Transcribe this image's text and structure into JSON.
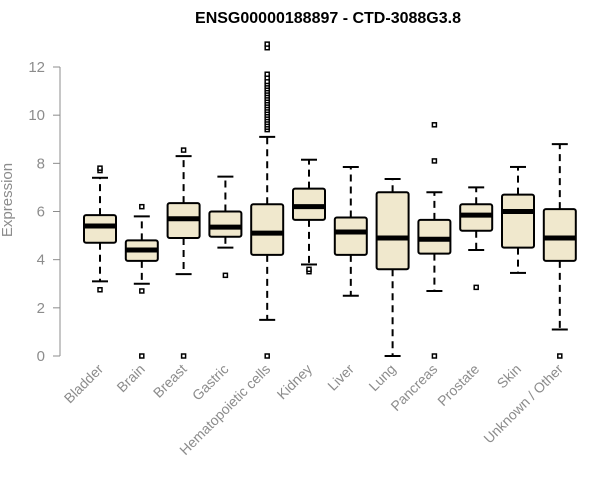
{
  "chart_data": {
    "type": "boxplot",
    "title": "ENSG00000188897 - CTD-3088G3.8",
    "ylabel": "Expression",
    "xlabel": "",
    "ylim": [
      0,
      12
    ],
    "yticks": [
      0,
      2,
      4,
      6,
      8,
      10,
      12
    ],
    "grid": false,
    "colors": {
      "box_fill": "#f0e8cd",
      "stroke": "#000000",
      "axis": "#8c8c8c",
      "label": "#8c8c8c"
    },
    "categories": [
      "Bladder",
      "Brain",
      "Breast",
      "Gastric",
      "Hematopoietic cells",
      "Kidney",
      "Liver",
      "Lung",
      "Pancreas",
      "Prostate",
      "Skin",
      "Unknown / Other"
    ],
    "boxes": [
      {
        "category": "Bladder",
        "whisker_low": 3.1,
        "q1": 4.7,
        "median": 5.4,
        "q3": 5.85,
        "whisker_high": 7.4,
        "outliers": [
          2.75,
          7.7,
          7.8
        ]
      },
      {
        "category": "Brain",
        "whisker_low": 3.0,
        "q1": 3.95,
        "median": 4.4,
        "q3": 4.8,
        "whisker_high": 5.8,
        "outliers": [
          0.0,
          2.7,
          6.2
        ]
      },
      {
        "category": "Breast",
        "whisker_low": 3.4,
        "q1": 4.9,
        "median": 5.7,
        "q3": 6.35,
        "whisker_high": 8.3,
        "outliers": [
          0.0,
          8.55
        ]
      },
      {
        "category": "Gastric",
        "whisker_low": 4.5,
        "q1": 4.95,
        "median": 5.35,
        "q3": 6.0,
        "whisker_high": 7.45,
        "outliers": [
          3.35
        ]
      },
      {
        "category": "Hematopoietic cells",
        "whisker_low": 1.5,
        "q1": 4.2,
        "median": 5.1,
        "q3": 6.3,
        "whisker_high": 9.1,
        "outliers": [
          0.0,
          9.4,
          9.5,
          9.6,
          9.7,
          9.8,
          9.9,
          10.0,
          10.1,
          10.2,
          10.3,
          10.4,
          10.5,
          10.6,
          10.7,
          10.8,
          10.9,
          11.0,
          11.1,
          11.2,
          11.3,
          11.4,
          11.55,
          11.7,
          12.8,
          12.95
        ]
      },
      {
        "category": "Kidney",
        "whisker_low": 3.8,
        "q1": 5.65,
        "median": 6.2,
        "q3": 6.95,
        "whisker_high": 8.15,
        "outliers": [
          3.5,
          3.6
        ]
      },
      {
        "category": "Liver",
        "whisker_low": 2.5,
        "q1": 4.2,
        "median": 5.15,
        "q3": 5.75,
        "whisker_high": 7.85,
        "outliers": []
      },
      {
        "category": "Lung",
        "whisker_low": 0.0,
        "q1": 3.6,
        "median": 4.9,
        "q3": 6.8,
        "whisker_high": 7.35,
        "outliers": []
      },
      {
        "category": "Pancreas",
        "whisker_low": 2.7,
        "q1": 4.25,
        "median": 4.85,
        "q3": 5.65,
        "whisker_high": 6.8,
        "outliers": [
          0.0,
          8.1,
          9.6
        ]
      },
      {
        "category": "Prostate",
        "whisker_low": 4.4,
        "q1": 5.2,
        "median": 5.85,
        "q3": 6.3,
        "whisker_high": 7.0,
        "outliers": [
          2.85
        ]
      },
      {
        "category": "Skin",
        "whisker_low": 3.45,
        "q1": 4.5,
        "median": 6.0,
        "q3": 6.7,
        "whisker_high": 7.85,
        "outliers": []
      },
      {
        "category": "Unknown / Other",
        "whisker_low": 1.1,
        "q1": 3.95,
        "median": 4.9,
        "q3": 6.1,
        "whisker_high": 8.8,
        "outliers": [
          0.0
        ]
      }
    ]
  }
}
